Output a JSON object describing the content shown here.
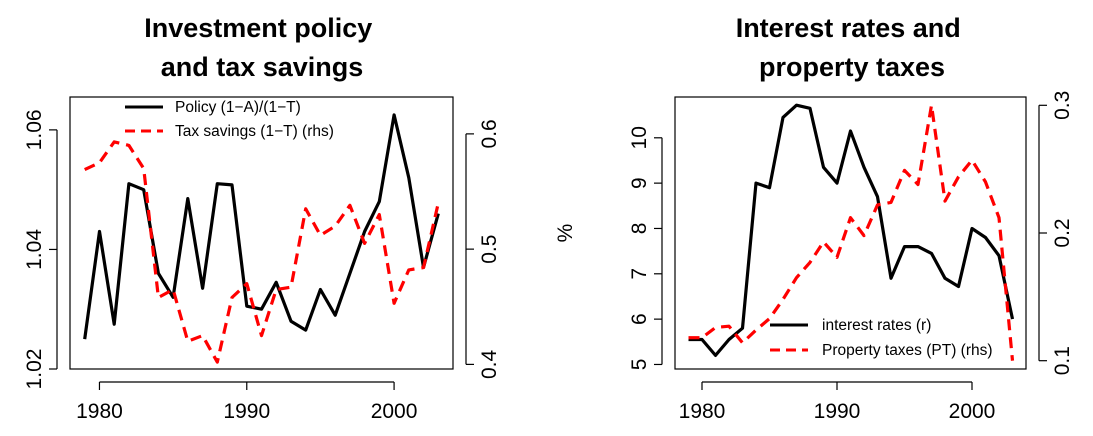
{
  "chart_data": [
    {
      "type": "line",
      "title": "Investment policy\nand tax savings",
      "xlabel": "",
      "ylabel": "",
      "xlim": [
        1978,
        2004
      ],
      "ylim": [
        1.02,
        1.0655
      ],
      "y2lim": [
        0.396,
        0.632
      ],
      "xticks": [
        1980,
        1990,
        2000
      ],
      "yticks": [
        "1.02",
        "1.04",
        "1.06"
      ],
      "y2ticks": [
        "0.4",
        "0.5",
        "0.6"
      ],
      "legend_position": "top-center",
      "series": [
        {
          "name": "Policy (1−A)/(1−T)",
          "axis": "left",
          "style": "solid",
          "color": "#000000",
          "x": [
            1979,
            1980,
            1981,
            1982,
            1983,
            1984,
            1985,
            1986,
            1987,
            1988,
            1989,
            1990,
            1991,
            1992,
            1993,
            1994,
            1995,
            1996,
            1997,
            1998,
            1999,
            2000,
            2001,
            2002,
            2003
          ],
          "values": [
            1.025,
            1.043,
            1.0275,
            1.051,
            1.05,
            1.036,
            1.032,
            1.0485,
            1.0335,
            1.051,
            1.0508,
            1.0305,
            1.03,
            1.0345,
            1.028,
            1.0265,
            1.0333,
            1.029,
            1.036,
            1.043,
            1.048,
            1.0625,
            1.052,
            1.037,
            1.046
          ]
        },
        {
          "name": "Tax savings (1−T) (rhs)",
          "axis": "right",
          "style": "dashed",
          "color": "#ff0000",
          "x": [
            1979,
            1980,
            1981,
            1982,
            1983,
            1984,
            1985,
            1986,
            1987,
            1988,
            1989,
            1990,
            1991,
            1992,
            1993,
            1994,
            1995,
            1996,
            1997,
            1998,
            1999,
            2000,
            2001,
            2002,
            2003
          ],
          "values": [
            0.569,
            0.575,
            0.593,
            0.59,
            0.57,
            0.458,
            0.465,
            0.42,
            0.425,
            0.402,
            0.458,
            0.47,
            0.425,
            0.465,
            0.467,
            0.535,
            0.512,
            0.52,
            0.538,
            0.505,
            0.53,
            0.453,
            0.482,
            0.484,
            0.54
          ]
        }
      ]
    },
    {
      "type": "line",
      "title": "Interest rates and\nproperty taxes",
      "xlabel": "",
      "ylabel": "%",
      "xlim": [
        1978,
        2004
      ],
      "ylim": [
        4.9,
        10.9
      ],
      "y2lim": [
        0.0935,
        0.3065
      ],
      "xticks": [
        1980,
        1990,
        2000
      ],
      "yticks": [
        "5",
        "6",
        "7",
        "8",
        "9",
        "10"
      ],
      "y2ticks": [
        "0.1",
        "0.2",
        "0.3"
      ],
      "legend_position": "bottom-right",
      "series": [
        {
          "name": "interest rates (r)",
          "axis": "left",
          "style": "solid",
          "color": "#000000",
          "x": [
            1979,
            1980,
            1981,
            1982,
            1983,
            1984,
            1985,
            1986,
            1987,
            1988,
            1989,
            1990,
            1991,
            1992,
            1993,
            1994,
            1995,
            1996,
            1997,
            1998,
            1999,
            2000,
            2001,
            2002,
            2003
          ],
          "values": [
            5.55,
            5.55,
            5.2,
            5.55,
            5.8,
            9.0,
            8.9,
            10.45,
            10.72,
            10.65,
            9.35,
            9.0,
            10.15,
            9.35,
            8.7,
            6.9,
            7.6,
            7.6,
            7.45,
            6.9,
            6.72,
            8.0,
            7.8,
            7.4,
            6.0
          ]
        },
        {
          "name": "Property taxes (PT) (rhs)",
          "axis": "right",
          "style": "dashed",
          "color": "#ff0000",
          "x": [
            1979,
            1980,
            1981,
            1982,
            1983,
            1984,
            1985,
            1986,
            1987,
            1988,
            1989,
            1990,
            1991,
            1992,
            1993,
            1994,
            1995,
            1996,
            1997,
            1998,
            1999,
            2000,
            2001,
            2002,
            2003
          ],
          "values": [
            0.118,
            0.118,
            0.126,
            0.127,
            0.114,
            0.124,
            0.133,
            0.148,
            0.165,
            0.177,
            0.193,
            0.181,
            0.212,
            0.198,
            0.222,
            0.224,
            0.249,
            0.238,
            0.3,
            0.225,
            0.244,
            0.257,
            0.24,
            0.212,
            0.1
          ]
        }
      ]
    }
  ]
}
